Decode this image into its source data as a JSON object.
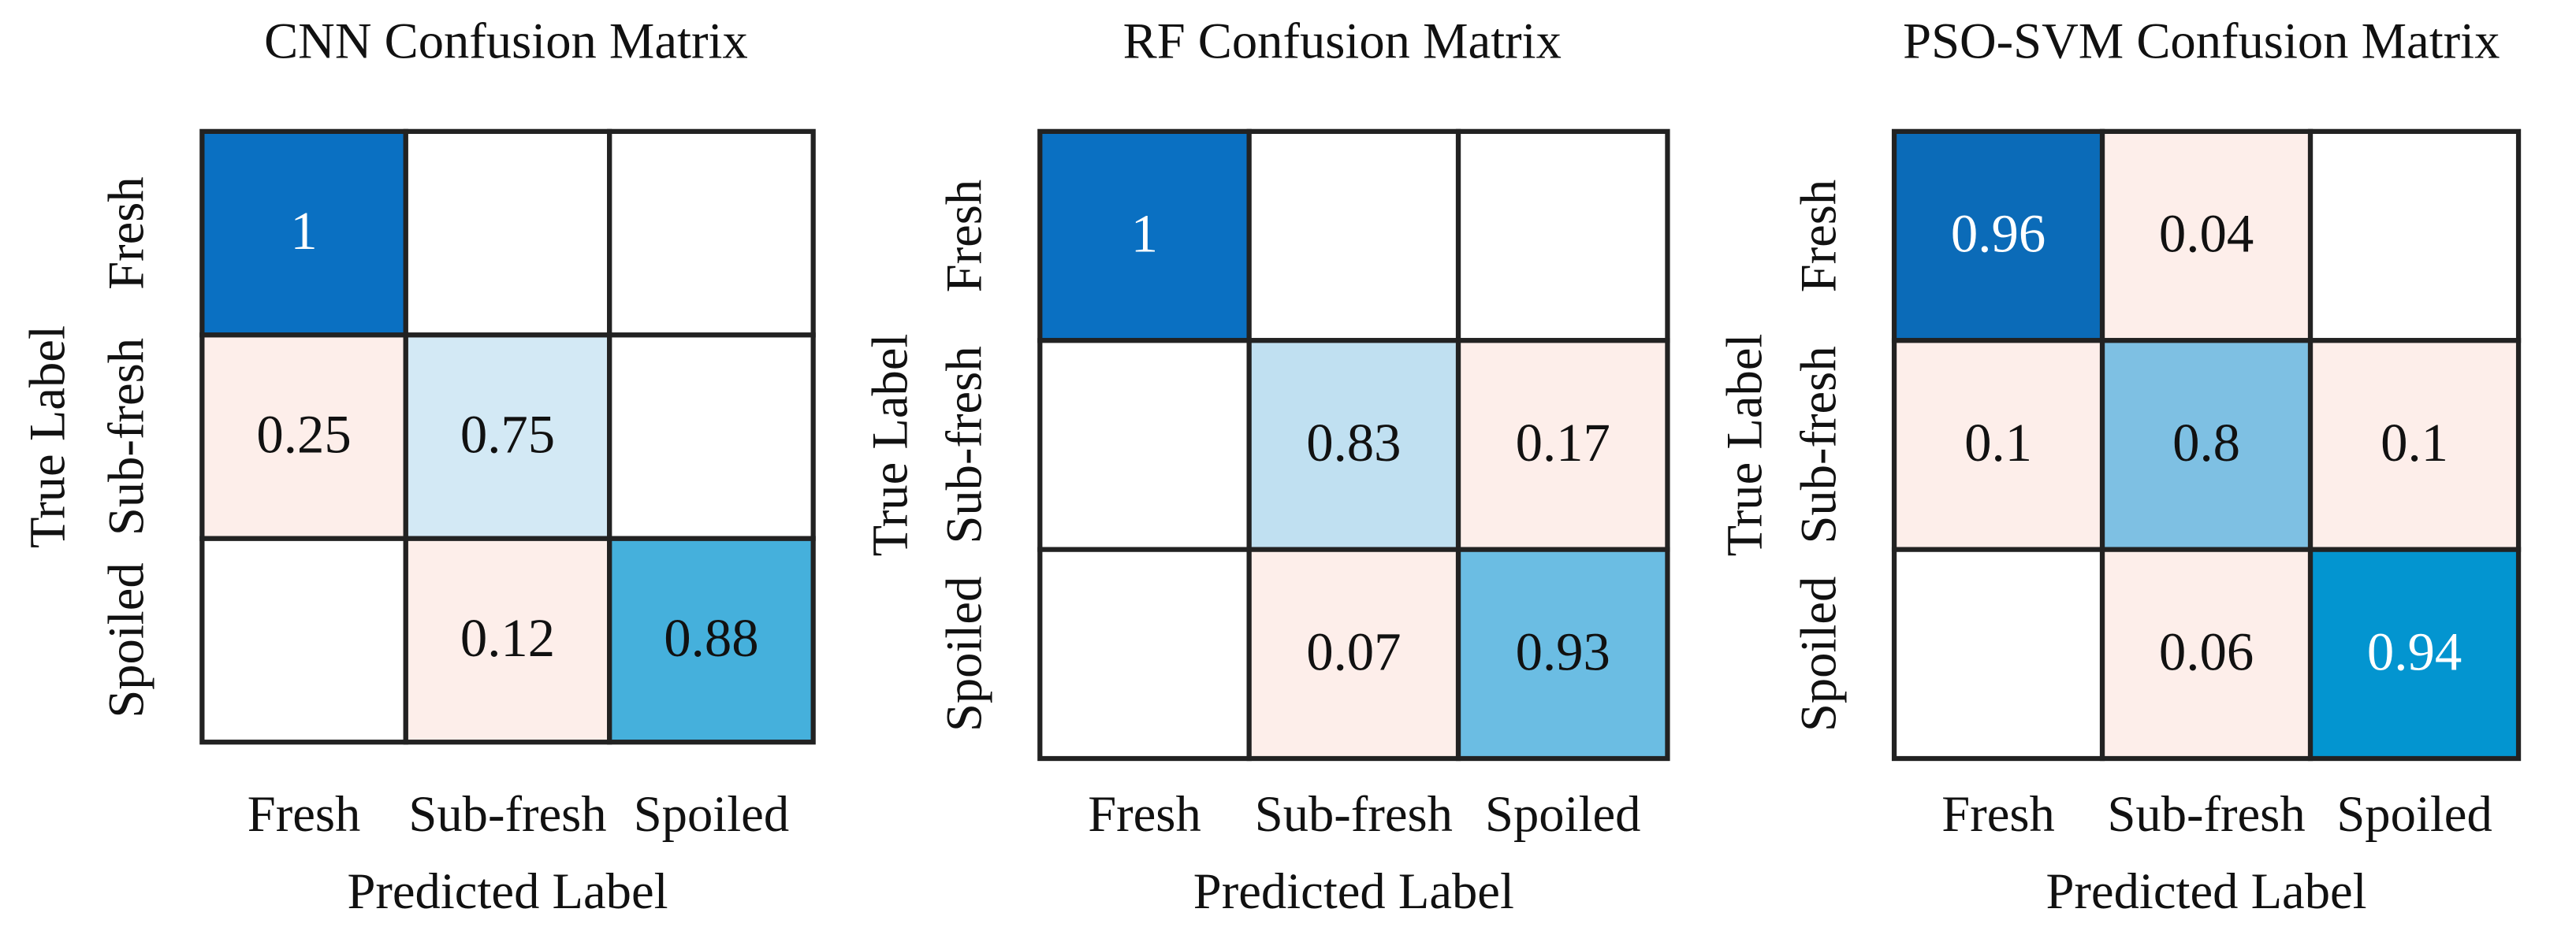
{
  "chart_data": [
    {
      "type": "heatmap",
      "title": "CNN Confusion Matrix",
      "categories": [
        "Fresh",
        "Sub-fresh",
        "Spoiled"
      ],
      "y_categories": [
        "Fresh",
        "Sub-fresh",
        "Spoiled"
      ],
      "xlabel": "Predicted Label",
      "ylabel": "True Label",
      "values": [
        [
          1,
          null,
          null
        ],
        [
          0.25,
          0.75,
          null
        ],
        [
          null,
          0.12,
          0.88
        ]
      ],
      "colors": [
        [
          "#0a70c2",
          "#ffffff",
          "#ffffff"
        ],
        [
          "#fdeeea",
          "#d3e9f5",
          "#ffffff"
        ],
        [
          "#ffffff",
          "#fdeeea",
          "#45b0dc"
        ]
      ]
    },
    {
      "type": "heatmap",
      "title": "RF Confusion Matrix",
      "categories": [
        "Fresh",
        "Sub-fresh",
        "Spoiled"
      ],
      "y_categories": [
        "Fresh",
        "Sub-fresh",
        "Spoiled"
      ],
      "xlabel": "Predicted Label",
      "ylabel": "True Label",
      "values": [
        [
          1,
          null,
          null
        ],
        [
          null,
          0.83,
          0.17
        ],
        [
          null,
          0.07,
          0.93
        ]
      ],
      "colors": [
        [
          "#0a70c2",
          "#ffffff",
          "#ffffff"
        ],
        [
          "#ffffff",
          "#c0e0f1",
          "#fdeeea"
        ],
        [
          "#ffffff",
          "#fdeeea",
          "#6bbde3"
        ]
      ]
    },
    {
      "type": "heatmap",
      "title": "PSO-SVM Confusion Matrix",
      "categories": [
        "Fresh",
        "Sub-fresh",
        "Spoiled"
      ],
      "y_categories": [
        "Fresh",
        "Sub-fresh",
        "Spoiled"
      ],
      "xlabel": "Predicted Label",
      "ylabel": "True Label",
      "values": [
        [
          0.96,
          0.04,
          null
        ],
        [
          0.1,
          0.8,
          0.1
        ],
        [
          null,
          0.06,
          0.94
        ]
      ],
      "colors": [
        [
          "#0b6bb8",
          "#fdeeea",
          "#ffffff"
        ],
        [
          "#fdeeea",
          "#7ec0e3",
          "#fdeeea"
        ],
        [
          "#ffffff",
          "#fdeeea",
          "#0395d0"
        ]
      ]
    }
  ]
}
